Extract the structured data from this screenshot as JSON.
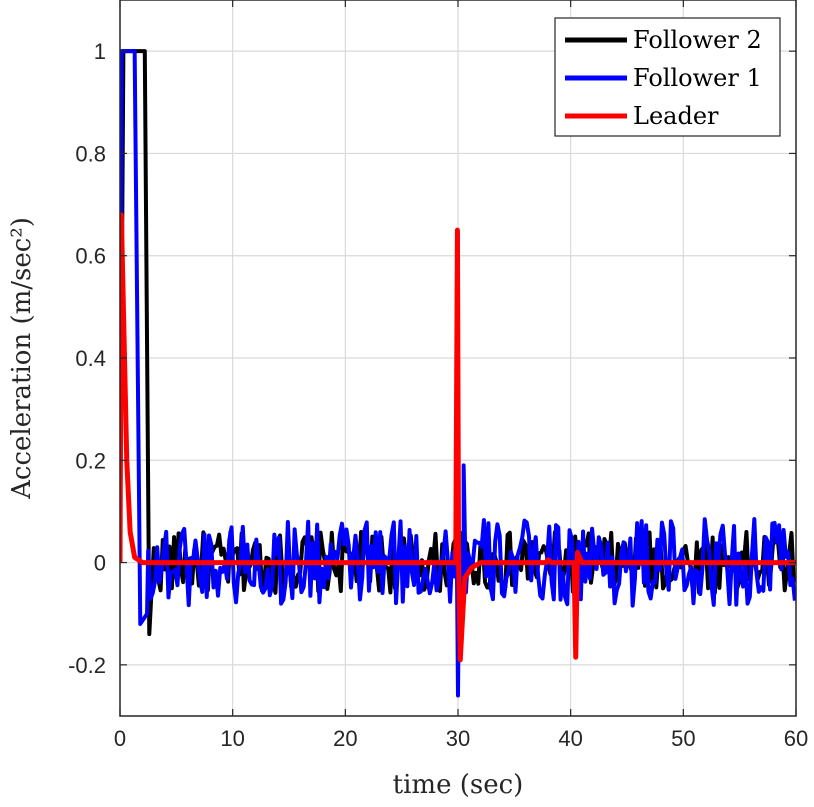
{
  "chart_data": {
    "type": "line",
    "xlabel": "time (sec)",
    "ylabel": "Acceleration (m/sec²)",
    "xlim": [
      0,
      60
    ],
    "ylim": [
      -0.3,
      1.1
    ],
    "xticks": [
      "0",
      "10",
      "20",
      "30",
      "40",
      "50",
      "60"
    ],
    "yticks": [
      "-0.2",
      "0",
      "0.2",
      "0.4",
      "0.6",
      "0.8",
      "1"
    ],
    "grid": true,
    "legend_position": "top-right",
    "series": [
      {
        "name": "Follower 2",
        "color": "#000000",
        "key_points": [
          [
            0,
            0
          ],
          [
            0.3,
            1.0
          ],
          [
            2.2,
            1.0
          ],
          [
            2.6,
            -0.14
          ],
          [
            3.2,
            -0.05
          ],
          [
            4.0,
            0
          ]
        ],
        "noise": {
          "t_start": 3.0,
          "t_end": 60,
          "amplitude": 0.06,
          "step": 0.2
        },
        "spikes": [
          [
            30.1,
            -0.05
          ],
          [
            30.4,
            0.03
          ]
        ]
      },
      {
        "name": "Follower 1",
        "color": "#0000ff",
        "key_points": [
          [
            0,
            0
          ],
          [
            0.15,
            1.0
          ],
          [
            1.3,
            1.0
          ],
          [
            1.8,
            -0.12
          ],
          [
            2.4,
            -0.1
          ],
          [
            3.0,
            0
          ]
        ],
        "noise": {
          "t_start": 2.5,
          "t_end": 60,
          "amplitude": 0.085,
          "step": 0.2
        },
        "spikes": [
          [
            30.0,
            -0.26
          ],
          [
            30.5,
            0.19
          ]
        ]
      },
      {
        "name": "Leader",
        "color": "#ff0000",
        "key_points": [
          [
            0,
            0
          ],
          [
            0.12,
            0.68
          ],
          [
            0.3,
            0.5
          ],
          [
            0.6,
            0.2
          ],
          [
            0.9,
            0.06
          ],
          [
            1.3,
            0.01
          ],
          [
            2.0,
            0
          ],
          [
            29.8,
            0
          ],
          [
            29.95,
            0.65
          ],
          [
            30.05,
            0.0
          ],
          [
            30.2,
            -0.19
          ],
          [
            30.6,
            -0.03
          ],
          [
            31.2,
            -0.01
          ],
          [
            32,
            0
          ],
          [
            37.8,
            0
          ],
          [
            38.0,
            0.005
          ],
          [
            38.3,
            0
          ],
          [
            40.3,
            0
          ],
          [
            40.45,
            -0.185
          ],
          [
            40.6,
            0.02
          ],
          [
            41.0,
            0.0
          ],
          [
            60,
            0
          ]
        ]
      }
    ]
  }
}
